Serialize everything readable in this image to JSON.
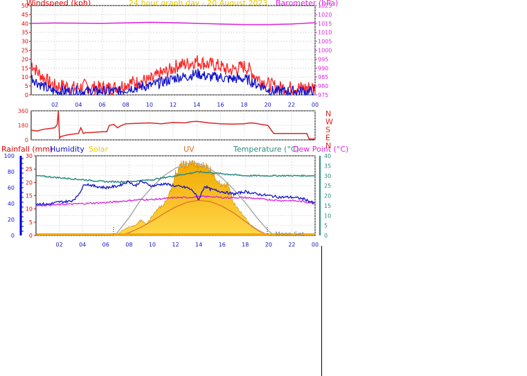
{
  "colors": {
    "windspeed": "#dd0000",
    "wind_gust": "#ff2222",
    "wind_avg": "#1111cc",
    "barometer": "#dd22dd",
    "direction": "#dd2222",
    "temperature": "#2a8a80",
    "humidity": "#1111cc",
    "dewpoint": "#dd22dd",
    "solar_fill": "#f0a800",
    "solar_light": "#ffd84a",
    "solar_max": "#aaaaaa",
    "uv": "#e26a2a",
    "rain": "#0000cc",
    "grid": "#c8c8c8",
    "title_yellow": "#e8c800"
  },
  "chart_data": [
    {
      "id": "wind-baro",
      "type": "line",
      "title": "24 hour graph day - 20 August 2023",
      "ylabel_left": "Windspeed (kph)",
      "ylabel_right": "Barometer (hPa)",
      "ylim": [
        0,
        50
      ],
      "ylim_right": [
        975,
        1025
      ],
      "yticks_left": [
        "0",
        "5",
        "10",
        "15",
        "20",
        "25",
        "30",
        "35",
        "40",
        "45",
        "50"
      ],
      "yticks_right": [
        "975",
        "980",
        "985",
        "990",
        "995",
        "1000",
        "1005",
        "1010",
        "1015",
        "1020",
        "1025"
      ],
      "xlim": [
        0,
        24
      ],
      "xticks": [
        "02",
        "04",
        "06",
        "08",
        "10",
        "12",
        "14",
        "16",
        "18",
        "20",
        "22",
        "00"
      ],
      "grid": true,
      "series": [
        {
          "name": "gust",
          "x": [
            0,
            0.5,
            1,
            1.5,
            2,
            2.5,
            3,
            3.5,
            4,
            4.5,
            5,
            5.5,
            6,
            6.5,
            7,
            7.5,
            8,
            8.5,
            9,
            9.5,
            10,
            10.5,
            11,
            11.5,
            12,
            12.5,
            13,
            13.5,
            14,
            14.5,
            15,
            15.5,
            16,
            16.5,
            17,
            17.5,
            18,
            18.5,
            19,
            19.5,
            20,
            20.5,
            21,
            21.5,
            22,
            22.5,
            23,
            23.5,
            24
          ],
          "values": [
            18,
            13,
            10,
            7,
            5,
            5,
            5,
            4,
            4,
            5,
            4,
            4,
            4,
            4,
            4,
            5,
            6,
            7,
            7,
            8,
            8,
            10,
            12,
            13,
            15,
            17,
            17,
            18,
            19,
            18,
            17,
            17,
            16,
            14,
            14,
            15,
            16,
            14,
            10,
            8,
            6,
            5,
            4,
            4,
            4,
            4,
            4,
            4,
            4
          ]
        },
        {
          "name": "average",
          "x": [
            0,
            0.5,
            1,
            1.5,
            2,
            2.5,
            3,
            3.5,
            4,
            4.5,
            5,
            5.5,
            6,
            6.5,
            7,
            7.5,
            8,
            8.5,
            9,
            9.5,
            10,
            10.5,
            11,
            11.5,
            12,
            12.5,
            13,
            13.5,
            14,
            14.5,
            15,
            15.5,
            16,
            16.5,
            17,
            17.5,
            18,
            18.5,
            19,
            19.5,
            20,
            20.5,
            21,
            21.5,
            22,
            22.5,
            23,
            23.5,
            24
          ],
          "values": [
            10,
            7,
            5,
            3,
            2,
            2,
            2,
            2,
            2,
            2,
            2,
            2,
            2,
            2,
            2,
            2,
            3,
            4,
            4,
            5,
            5,
            6,
            7,
            8,
            9,
            10,
            10,
            11,
            12,
            11,
            10,
            10,
            10,
            9,
            9,
            9,
            9,
            8,
            6,
            5,
            3,
            2,
            2,
            2,
            2,
            2,
            2,
            2,
            2
          ]
        },
        {
          "name": "barometer",
          "x": [
            0,
            2,
            4,
            6,
            8,
            10,
            12,
            14,
            16,
            18,
            20,
            22,
            24
          ],
          "values": [
            1015,
            1015.2,
            1015.1,
            1015,
            1015.3,
            1015.6,
            1015.4,
            1015,
            1014.6,
            1014.3,
            1014.3,
            1014.6,
            1015.4
          ]
        }
      ]
    },
    {
      "id": "wind-direction",
      "type": "line",
      "ylim": [
        0,
        360
      ],
      "yticks": [
        "0",
        "180",
        "360"
      ],
      "compass": [
        "N",
        "W",
        "S",
        "E",
        "N"
      ],
      "xlim": [
        0,
        24
      ],
      "grid": true,
      "series": [
        {
          "name": "direction",
          "x": [
            0,
            0.5,
            1,
            1.5,
            2,
            2.2,
            2.3,
            2.4,
            2.5,
            3,
            3.5,
            4,
            4.2,
            4.4,
            4.6,
            5,
            6,
            6.4,
            6.6,
            7,
            7.3,
            7.5,
            8,
            9,
            10,
            11,
            12,
            13,
            13.5,
            14,
            14.5,
            15,
            16,
            17,
            18,
            18.5,
            19,
            19.5,
            20,
            20.5,
            21,
            22,
            23,
            23.3,
            23.5,
            24
          ],
          "values": [
            120,
            110,
            130,
            140,
            150,
            190,
            360,
            20,
            40,
            60,
            70,
            80,
            150,
            80,
            90,
            90,
            100,
            100,
            180,
            190,
            150,
            170,
            200,
            205,
            210,
            200,
            215,
            210,
            225,
            230,
            220,
            210,
            200,
            195,
            200,
            210,
            205,
            190,
            180,
            80,
            80,
            80,
            80,
            80,
            10,
            10
          ]
        }
      ]
    },
    {
      "id": "temp-humidity-solar",
      "type": "area",
      "legend": [
        "Rainfall (mm)",
        "Humidity",
        "Solar",
        "UV",
        "Temperature (°C)",
        "Dew Point (°C)"
      ],
      "yticks_humidity": [
        "0",
        "20",
        "40",
        "60",
        "80",
        "100"
      ],
      "yticks_rain": [
        "0",
        "5",
        "10",
        "15",
        "20",
        "25",
        "30"
      ],
      "yticks_temp": [
        "0",
        "5",
        "10",
        "15",
        "20",
        "25",
        "30",
        "35",
        "40"
      ],
      "xticks": [
        "02",
        "04",
        "06",
        "08",
        "10",
        "12",
        "14",
        "16",
        "18",
        "20",
        "22",
        "00"
      ],
      "annotations": [
        "Moon Set"
      ],
      "xlim": [
        0,
        24
      ],
      "grid": true,
      "series": [
        {
          "name": "Temperature (°C)",
          "x": [
            0,
            2,
            4,
            6,
            8,
            10,
            12,
            14,
            16,
            18,
            20,
            22,
            24
          ],
          "values": [
            30,
            29,
            28,
            27,
            27,
            28,
            30,
            32,
            31,
            30,
            30,
            30,
            30
          ]
        },
        {
          "name": "Humidity",
          "x": [
            0,
            1,
            2,
            3,
            3.5,
            4,
            4.2,
            5,
            6,
            7,
            8,
            8.5,
            9,
            10,
            11,
            12,
            13,
            13.5,
            14,
            14.5,
            15,
            16,
            17,
            18,
            19,
            20,
            21,
            22,
            23,
            24
          ],
          "values": [
            40,
            39,
            42,
            43,
            48,
            60,
            65,
            62,
            60,
            62,
            68,
            62,
            68,
            62,
            65,
            62,
            60,
            56,
            45,
            62,
            58,
            55,
            52,
            55,
            52,
            50,
            48,
            48,
            46,
            40
          ]
        },
        {
          "name": "Dew Point (°C)",
          "x": [
            0,
            2,
            4,
            6,
            7,
            8,
            9,
            10,
            11,
            12,
            13,
            14,
            15,
            16,
            17,
            18,
            19,
            20,
            21,
            22,
            23,
            24
          ],
          "values": [
            15,
            15.5,
            16,
            16.5,
            17,
            17.5,
            18,
            18,
            18.5,
            19,
            19,
            19.5,
            19.5,
            19,
            19,
            19,
            18.5,
            18,
            17.5,
            17.5,
            17,
            16
          ]
        },
        {
          "name": "Solar",
          "x": [
            6.6,
            7,
            7.5,
            8,
            8.5,
            9,
            9.5,
            10,
            10.5,
            11,
            11.5,
            12,
            12.5,
            13,
            13.5,
            14,
            14.5,
            15,
            15.5,
            16,
            16.5,
            17,
            17.5,
            18,
            18.5,
            19,
            19.5,
            20
          ],
          "values": [
            0,
            3,
            12,
            19,
            22,
            35,
            25,
            45,
            60,
            70,
            95,
            140,
            160,
            160,
            165,
            155,
            160,
            150,
            130,
            110,
            115,
            75,
            55,
            40,
            20,
            12,
            4,
            0
          ]
        },
        {
          "name": "Solar max",
          "x": [
            6.8,
            8,
            9,
            10,
            11,
            12,
            13,
            13.5,
            14,
            15,
            16,
            17,
            18,
            19,
            20,
            20.5
          ],
          "values": [
            0,
            40,
            80,
            110,
            135,
            152,
            162,
            164,
            162,
            150,
            130,
            104,
            74,
            40,
            10,
            0
          ]
        },
        {
          "name": "UV",
          "x": [
            7,
            8,
            9,
            10,
            11,
            12,
            13,
            14,
            15,
            16,
            17,
            18,
            19,
            20
          ],
          "values": [
            0,
            0.4,
            1.2,
            2.2,
            3.3,
            4.3,
            5,
            5.3,
            5.1,
            4.4,
            3.4,
            2.1,
            0.9,
            0
          ]
        }
      ]
    }
  ]
}
